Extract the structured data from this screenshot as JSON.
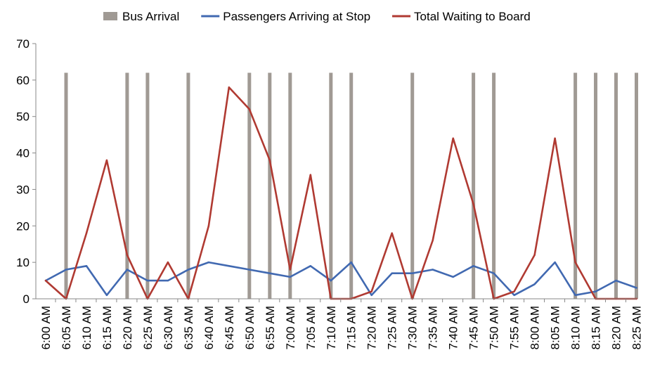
{
  "chart_data": {
    "type": "line",
    "title": "",
    "xlabel": "",
    "ylabel": "",
    "ylim": [
      0,
      70
    ],
    "yticks": [
      0,
      10,
      20,
      30,
      40,
      50,
      60,
      70
    ],
    "grid": false,
    "legend_position": "top",
    "categories": [
      "6:00 AM",
      "6:05 AM",
      "6:10 AM",
      "6:15 AM",
      "6:20 AM",
      "6:25 AM",
      "6:30 AM",
      "6:35 AM",
      "6:40 AM",
      "6:45 AM",
      "6:50 AM",
      "6:55 AM",
      "7:00 AM",
      "7:05 AM",
      "7:10 AM",
      "7:15 AM",
      "7:20 AM",
      "7:25 AM",
      "7:30 AM",
      "7:35 AM",
      "7:40 AM",
      "7:45 AM",
      "7:50 AM",
      "7:55 AM",
      "8:00 AM",
      "8:05 AM",
      "8:10 AM",
      "8:15 AM",
      "8:20 AM",
      "8:25 AM"
    ],
    "series": [
      {
        "name": "Bus Arrival",
        "kind": "bar",
        "color": "#a09a94",
        "values": [
          0,
          62,
          0,
          0,
          62,
          62,
          0,
          62,
          0,
          0,
          62,
          62,
          62,
          0,
          62,
          62,
          0,
          0,
          62,
          0,
          0,
          62,
          62,
          0,
          0,
          0,
          62,
          62,
          62,
          62
        ]
      },
      {
        "name": "Passengers Arriving at Stop",
        "kind": "line",
        "color": "#4169b1",
        "values": [
          5,
          8,
          9,
          1,
          8,
          5,
          5,
          8,
          10,
          9,
          8,
          7,
          6,
          9,
          5,
          10,
          1,
          7,
          7,
          8,
          6,
          9,
          7,
          1,
          4,
          10,
          1,
          2,
          5,
          3
        ]
      },
      {
        "name": "Total Waiting to Board",
        "kind": "line",
        "color": "#b03a32",
        "values": [
          5,
          0,
          18,
          38,
          12,
          0,
          10,
          0,
          20,
          58,
          52,
          38,
          8,
          34,
          0,
          0,
          2,
          18,
          0,
          16,
          44,
          26,
          0,
          2,
          12,
          44,
          10,
          0,
          0,
          0
        ]
      }
    ]
  }
}
